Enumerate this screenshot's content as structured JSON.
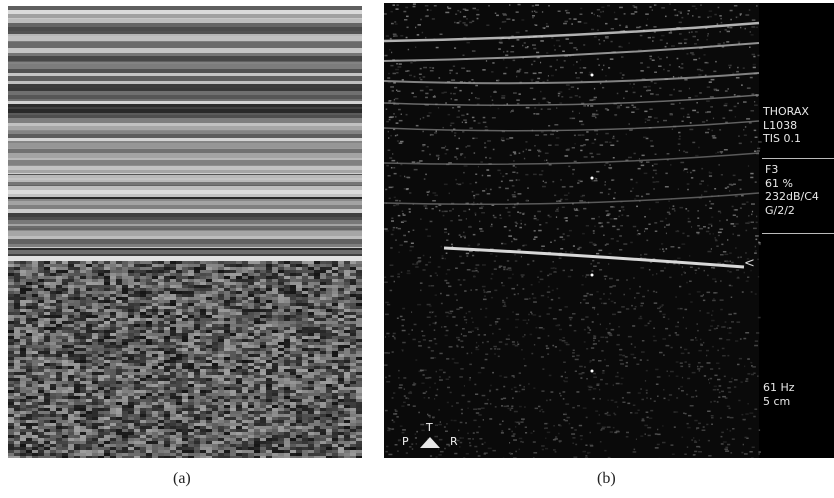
{
  "panels": [
    {
      "id": "a",
      "caption": "(a)",
      "description": "M-mode ultrasound strip with horizontal bright bands in upper half and granular speckle in lower half"
    },
    {
      "id": "b",
      "caption": "(b)",
      "description": "B-mode thoracic ultrasound image with pleural line"
    }
  ],
  "ultrasound": {
    "info_top": [
      "THORAX",
      "L1038",
      "TIS 0.1"
    ],
    "info_mid": [
      "F3",
      "61 %",
      "232dB/C4",
      "G/2/2"
    ],
    "info_bottom": [
      "61 Hz",
      "5 cm"
    ],
    "orientation": {
      "left": "P",
      "top": "T",
      "right": "R"
    },
    "focus_marker": "<"
  }
}
